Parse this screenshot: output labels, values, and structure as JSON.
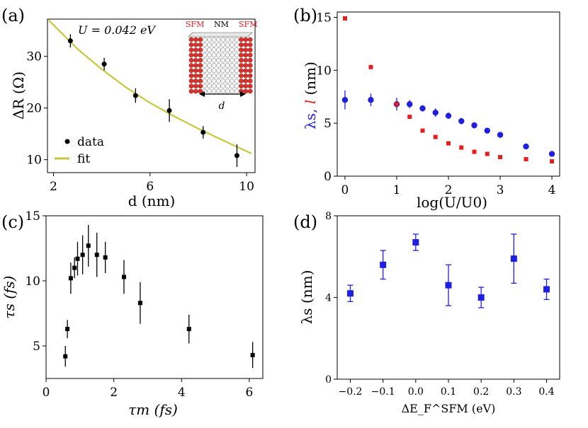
{
  "figure": {
    "panels": [
      {
        "id": "a",
        "tag": "(a)"
      },
      {
        "id": "b",
        "tag": "(b)"
      },
      {
        "id": "c",
        "tag": "(c)"
      },
      {
        "id": "d",
        "tag": "(d)"
      }
    ]
  },
  "chart_data": [
    {
      "panel": "a",
      "type": "scatter",
      "title": "",
      "annotation": "U = 0.042 eV",
      "xlabel": "d (nm)",
      "ylabel": "ΔR (Ω)",
      "xlim": [
        1.75,
        10.35
      ],
      "ylim": [
        7.5,
        37.2
      ],
      "xticks": [
        2,
        6,
        10
      ],
      "yticks": [
        10,
        20,
        30
      ],
      "series": [
        {
          "name": "data",
          "color": "#000000",
          "x": [
            2.7,
            4.1,
            5.4,
            6.8,
            8.2,
            9.6
          ],
          "y": [
            33.0,
            28.5,
            22.4,
            19.5,
            15.3,
            10.8
          ],
          "err": [
            1.3,
            1.2,
            1.4,
            2.2,
            1.2,
            2.2
          ]
        },
        {
          "name": "fit",
          "color": "#c8c63e",
          "type": "line",
          "x": [
            1.8,
            3.0,
            4.0,
            5.0,
            6.0,
            7.0,
            8.0,
            9.0,
            10.2
          ],
          "y": [
            37.0,
            31.4,
            27.5,
            24.0,
            21.0,
            18.4,
            16.0,
            13.8,
            11.2
          ]
        }
      ],
      "legend": {
        "position": "lower-left",
        "entries": [
          "data",
          "fit"
        ]
      },
      "inset": {
        "left_label": "SFM",
        "middle_label": "NM",
        "right_label": "SFM",
        "dimension_label": "d"
      }
    },
    {
      "panel": "b",
      "type": "scatter",
      "xlabel": "log(U/U0)",
      "ylabel_parts": [
        "λs,",
        " l",
        " (nm)"
      ],
      "xlim": [
        -0.15,
        4.15
      ],
      "ylim": [
        0,
        15.5
      ],
      "xticks": [
        0,
        1,
        2,
        3,
        4
      ],
      "yticks": [
        0,
        5,
        10,
        15
      ],
      "series": [
        {
          "name": "λs",
          "color": "#1f1fe0",
          "marker": "circle",
          "x": [
            0,
            0.5,
            1.0,
            1.25,
            1.5,
            1.75,
            2.0,
            2.25,
            2.5,
            2.75,
            3.0,
            3.5,
            4.0
          ],
          "y": [
            7.2,
            7.2,
            6.8,
            6.8,
            6.4,
            6.0,
            5.7,
            5.2,
            4.8,
            4.3,
            3.9,
            2.8,
            2.1
          ],
          "err": [
            0.9,
            0.6,
            0.6,
            0.4,
            0.3,
            0.4,
            0.3,
            0.3,
            0.3,
            0.2,
            0.2,
            0.15,
            0.15
          ]
        },
        {
          "name": "l",
          "color": "#e02020",
          "marker": "square",
          "x": [
            0,
            0.5,
            1.0,
            1.25,
            1.5,
            1.75,
            2.0,
            2.25,
            2.5,
            2.75,
            3.0,
            3.5,
            4.0
          ],
          "y": [
            14.9,
            10.3,
            6.8,
            5.6,
            4.3,
            3.7,
            3.1,
            2.7,
            2.3,
            2.1,
            1.8,
            1.6,
            1.4
          ],
          "err": [
            0.2,
            0.15,
            0.15,
            0.15,
            0.1,
            0.1,
            0.1,
            0.1,
            0.1,
            0.1,
            0.1,
            0.1,
            0.1
          ]
        }
      ]
    },
    {
      "panel": "c",
      "type": "scatter",
      "xlabel": "τm (fs)",
      "ylabel": "τs (fs)",
      "xlim": [
        0,
        6.4
      ],
      "ylim": [
        2.5,
        15.0
      ],
      "xticks": [
        0,
        2,
        4,
        6
      ],
      "yticks": [
        5,
        10,
        15
      ],
      "series": [
        {
          "name": "τs",
          "color": "#000000",
          "marker": "square",
          "x": [
            0.57,
            0.63,
            0.73,
            0.84,
            0.93,
            1.08,
            1.25,
            1.5,
            1.75,
            2.3,
            2.78,
            4.22,
            6.1
          ],
          "y": [
            4.2,
            6.3,
            10.2,
            11.0,
            11.7,
            12.0,
            12.7,
            12.0,
            11.8,
            10.3,
            8.3,
            6.3,
            4.3
          ],
          "err": [
            0.8,
            0.7,
            1.2,
            0.8,
            1.3,
            1.5,
            1.6,
            1.7,
            1.2,
            1.3,
            1.6,
            1.1,
            1.0
          ]
        }
      ]
    },
    {
      "panel": "d",
      "type": "scatter",
      "xlabel": "ΔE_F^SFM (eV)",
      "ylabel": "λs (nm)",
      "xlim": [
        -0.24,
        0.44
      ],
      "ylim": [
        0,
        8.0
      ],
      "xticks": [
        -0.2,
        -0.1,
        0.0,
        0.1,
        0.2,
        0.3,
        0.4
      ],
      "xticklabels": [
        "−0.2",
        "−0.1",
        "0.0",
        "0.1",
        "0.2",
        "0.3",
        "0.4"
      ],
      "yticks": [
        0,
        4,
        8
      ],
      "series": [
        {
          "name": "λs",
          "color": "#1f1fe0",
          "marker": "square",
          "x": [
            -0.2,
            -0.1,
            0.0,
            0.1,
            0.2,
            0.3,
            0.4
          ],
          "y": [
            4.2,
            5.6,
            6.7,
            4.6,
            4.0,
            5.9,
            4.4
          ],
          "err": [
            0.4,
            0.7,
            0.4,
            1.0,
            0.5,
            1.2,
            0.5
          ]
        }
      ]
    }
  ]
}
